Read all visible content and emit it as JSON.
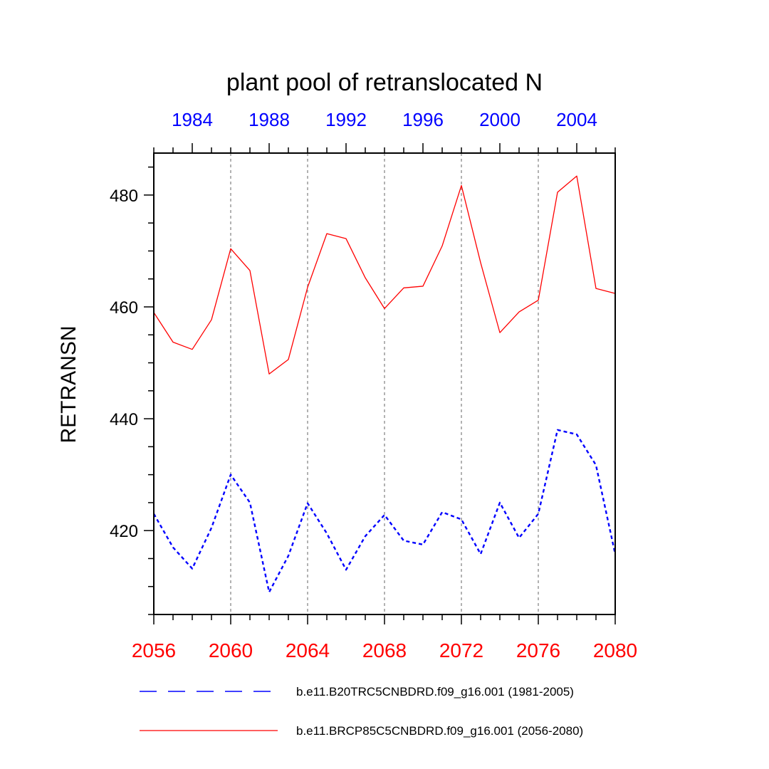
{
  "chart_data": {
    "type": "line",
    "title": "plant pool of retranslocated N",
    "ylabel": "RETRANSN",
    "xlabel": "",
    "xlim": [
      2056,
      2080
    ],
    "ylim": [
      405,
      487.5
    ],
    "x_ticks": [
      "2056",
      "2060",
      "2064",
      "2068",
      "2072",
      "2076",
      "2080"
    ],
    "top_axis_ticks": [
      "1984",
      "1988",
      "1992",
      "1996",
      "2000",
      "2004"
    ],
    "y_ticks": [
      "420",
      "440",
      "460",
      "480"
    ],
    "x": [
      2056,
      2057,
      2058,
      2059,
      2060,
      2061,
      2062,
      2063,
      2064,
      2065,
      2066,
      2067,
      2068,
      2069,
      2070,
      2071,
      2072,
      2073,
      2074,
      2075,
      2076,
      2077,
      2078,
      2079,
      2080
    ],
    "series": [
      {
        "name": "b.e11.B20TRC5CNBDRD.f09_g16.001 (1981-2005)",
        "color": "#0000ff",
        "style": "dashed",
        "values": [
          423,
          417,
          413.2,
          420.5,
          430,
          425,
          409,
          415.5,
          424.9,
          419.5,
          413,
          419,
          422.8,
          418.2,
          417.5,
          423.3,
          422,
          415.8,
          425,
          418.7,
          423,
          438,
          437.2,
          431.7,
          415.8
        ]
      },
      {
        "name": "b.e11.BRCP85C5CNBDRD.f09_g16.001 (2056-2080)",
        "color": "#ff0000",
        "style": "solid",
        "values": [
          459,
          453.7,
          452.4,
          457.7,
          470.4,
          466.5,
          448,
          450.6,
          463.5,
          473.1,
          472.2,
          465.2,
          459.7,
          463.4,
          463.7,
          470.9,
          481.7,
          467.9,
          455.4,
          459.1,
          461.2,
          480.5,
          483.4,
          463.3,
          462.4
        ]
      }
    ],
    "legend_position": "bottom"
  }
}
